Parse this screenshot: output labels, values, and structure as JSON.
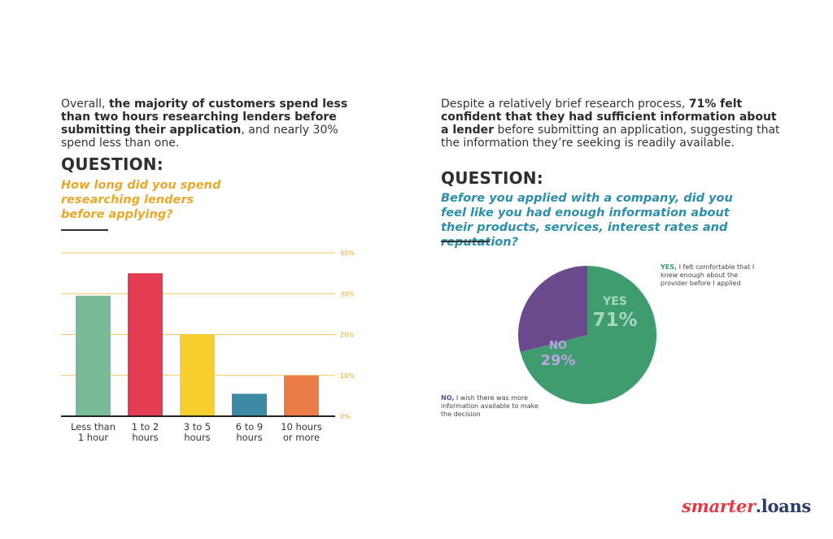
{
  "left": {
    "intro": {
      "p1": "Overall, ",
      "b1": "the majority of customers spend less than two hours researching lenders before submitting their application",
      "p2": ", and nearly 30% spend less than one."
    },
    "question_label": "QUESTION:",
    "question_text": "How long did you spend researching lenders before applying?"
  },
  "right": {
    "intro": {
      "p1": "Despite a relatively brief research process, ",
      "b1": "71% felt confident that they had sufficient information about a lender",
      "p2": " before submitting an application, suggesting that the information they’re seeking is readily available."
    },
    "question_label": "QUESTION:",
    "question_text": "Before you applied with a company, did you feel like you had enough information about their products, services, interest rates and reputation?",
    "yes_note": {
      "lead": "YES,",
      "rest": " I felt comfortable that I knew enough about the provider before I applied"
    },
    "no_note": {
      "lead": "NO,",
      "rest": " I wish there was more information available to make the decision"
    }
  },
  "logo": {
    "part1": "smarter",
    "part2": ".loans"
  },
  "chart_data": [
    {
      "type": "bar",
      "categories": [
        [
          "Less than",
          "1 hour"
        ],
        [
          "1 to 2",
          "hours"
        ],
        [
          "3 to 5",
          "hours"
        ],
        [
          "6 to 9",
          "hours"
        ],
        [
          "10 hours",
          "or more"
        ]
      ],
      "values": [
        29.5,
        35,
        20,
        5.5,
        10
      ],
      "colors": [
        "#79bb97",
        "#e43c52",
        "#f7cf2e",
        "#3c8aa3",
        "#ea7c47"
      ],
      "ylim": [
        0,
        40
      ],
      "yticks": [
        0,
        10,
        20,
        30,
        40
      ],
      "ytick_labels": [
        "0%",
        "10%",
        "20%",
        "30%",
        "40%"
      ],
      "grid": true,
      "grid_color": "#f2c95a",
      "axis_label_color": "#e8a92a",
      "title": "",
      "xlabel": "",
      "ylabel": ""
    },
    {
      "type": "pie",
      "slices": [
        {
          "label": "YES",
          "value": 71,
          "value_label": "71%",
          "color": "#3e9c6e",
          "text_color": "#a6d8bf"
        },
        {
          "label": "NO",
          "value": 29,
          "value_label": "29%",
          "color": "#6a4a8c",
          "text_color": "#b9a5e0"
        }
      ]
    }
  ]
}
